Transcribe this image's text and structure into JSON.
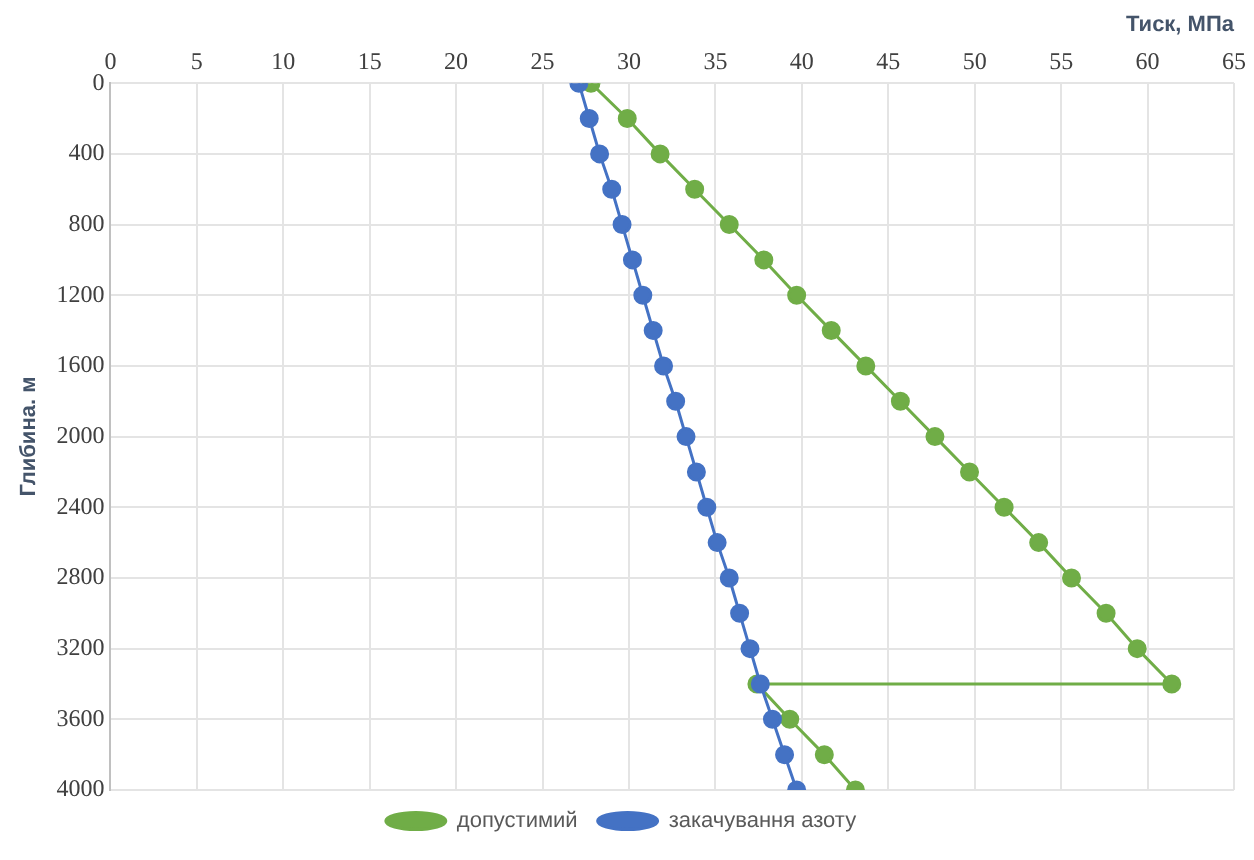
{
  "chart_data": {
    "type": "line",
    "xlabel": "Тиск, МПа",
    "ylabel": "Глибина. м",
    "xlim": [
      0,
      65
    ],
    "xticks": [
      0,
      5,
      10,
      15,
      20,
      25,
      30,
      35,
      40,
      45,
      50,
      55,
      60,
      65
    ],
    "ylim": [
      4000,
      0
    ],
    "yticks": [
      0,
      400,
      800,
      1200,
      1600,
      2000,
      2400,
      2800,
      3200,
      3600,
      4000
    ],
    "grid": true,
    "legend": "bottom",
    "marker": "circle",
    "line_style": "solid",
    "series": [
      {
        "name": "допустимий",
        "color": "#70ad47",
        "x": [
          27.8,
          29.9,
          31.8,
          33.8,
          35.8,
          37.8,
          39.7,
          41.7,
          43.7,
          45.7,
          47.7,
          49.7,
          51.7,
          53.7,
          55.6,
          57.6,
          59.4,
          61.4,
          37.4,
          39.3,
          41.3,
          43.1
        ],
        "values": [
          0,
          200,
          400,
          600,
          800,
          1000,
          1200,
          1400,
          1600,
          1800,
          2000,
          2200,
          2400,
          2600,
          2800,
          3000,
          3200,
          3400,
          3400,
          3600,
          3800,
          4000
        ]
      },
      {
        "name": "закачування азоту",
        "color": "#4472c4",
        "x": [
          27.1,
          27.7,
          28.3,
          29.0,
          29.6,
          30.2,
          30.8,
          31.4,
          32.0,
          32.7,
          33.3,
          33.9,
          34.5,
          35.1,
          35.8,
          36.4,
          37.0,
          37.6,
          38.3,
          39.0,
          39.7
        ],
        "values": [
          0,
          200,
          400,
          600,
          800,
          1000,
          1200,
          1400,
          1600,
          1800,
          2000,
          2200,
          2400,
          2600,
          2800,
          3000,
          3200,
          3400,
          3600,
          3800,
          4000
        ]
      }
    ]
  }
}
